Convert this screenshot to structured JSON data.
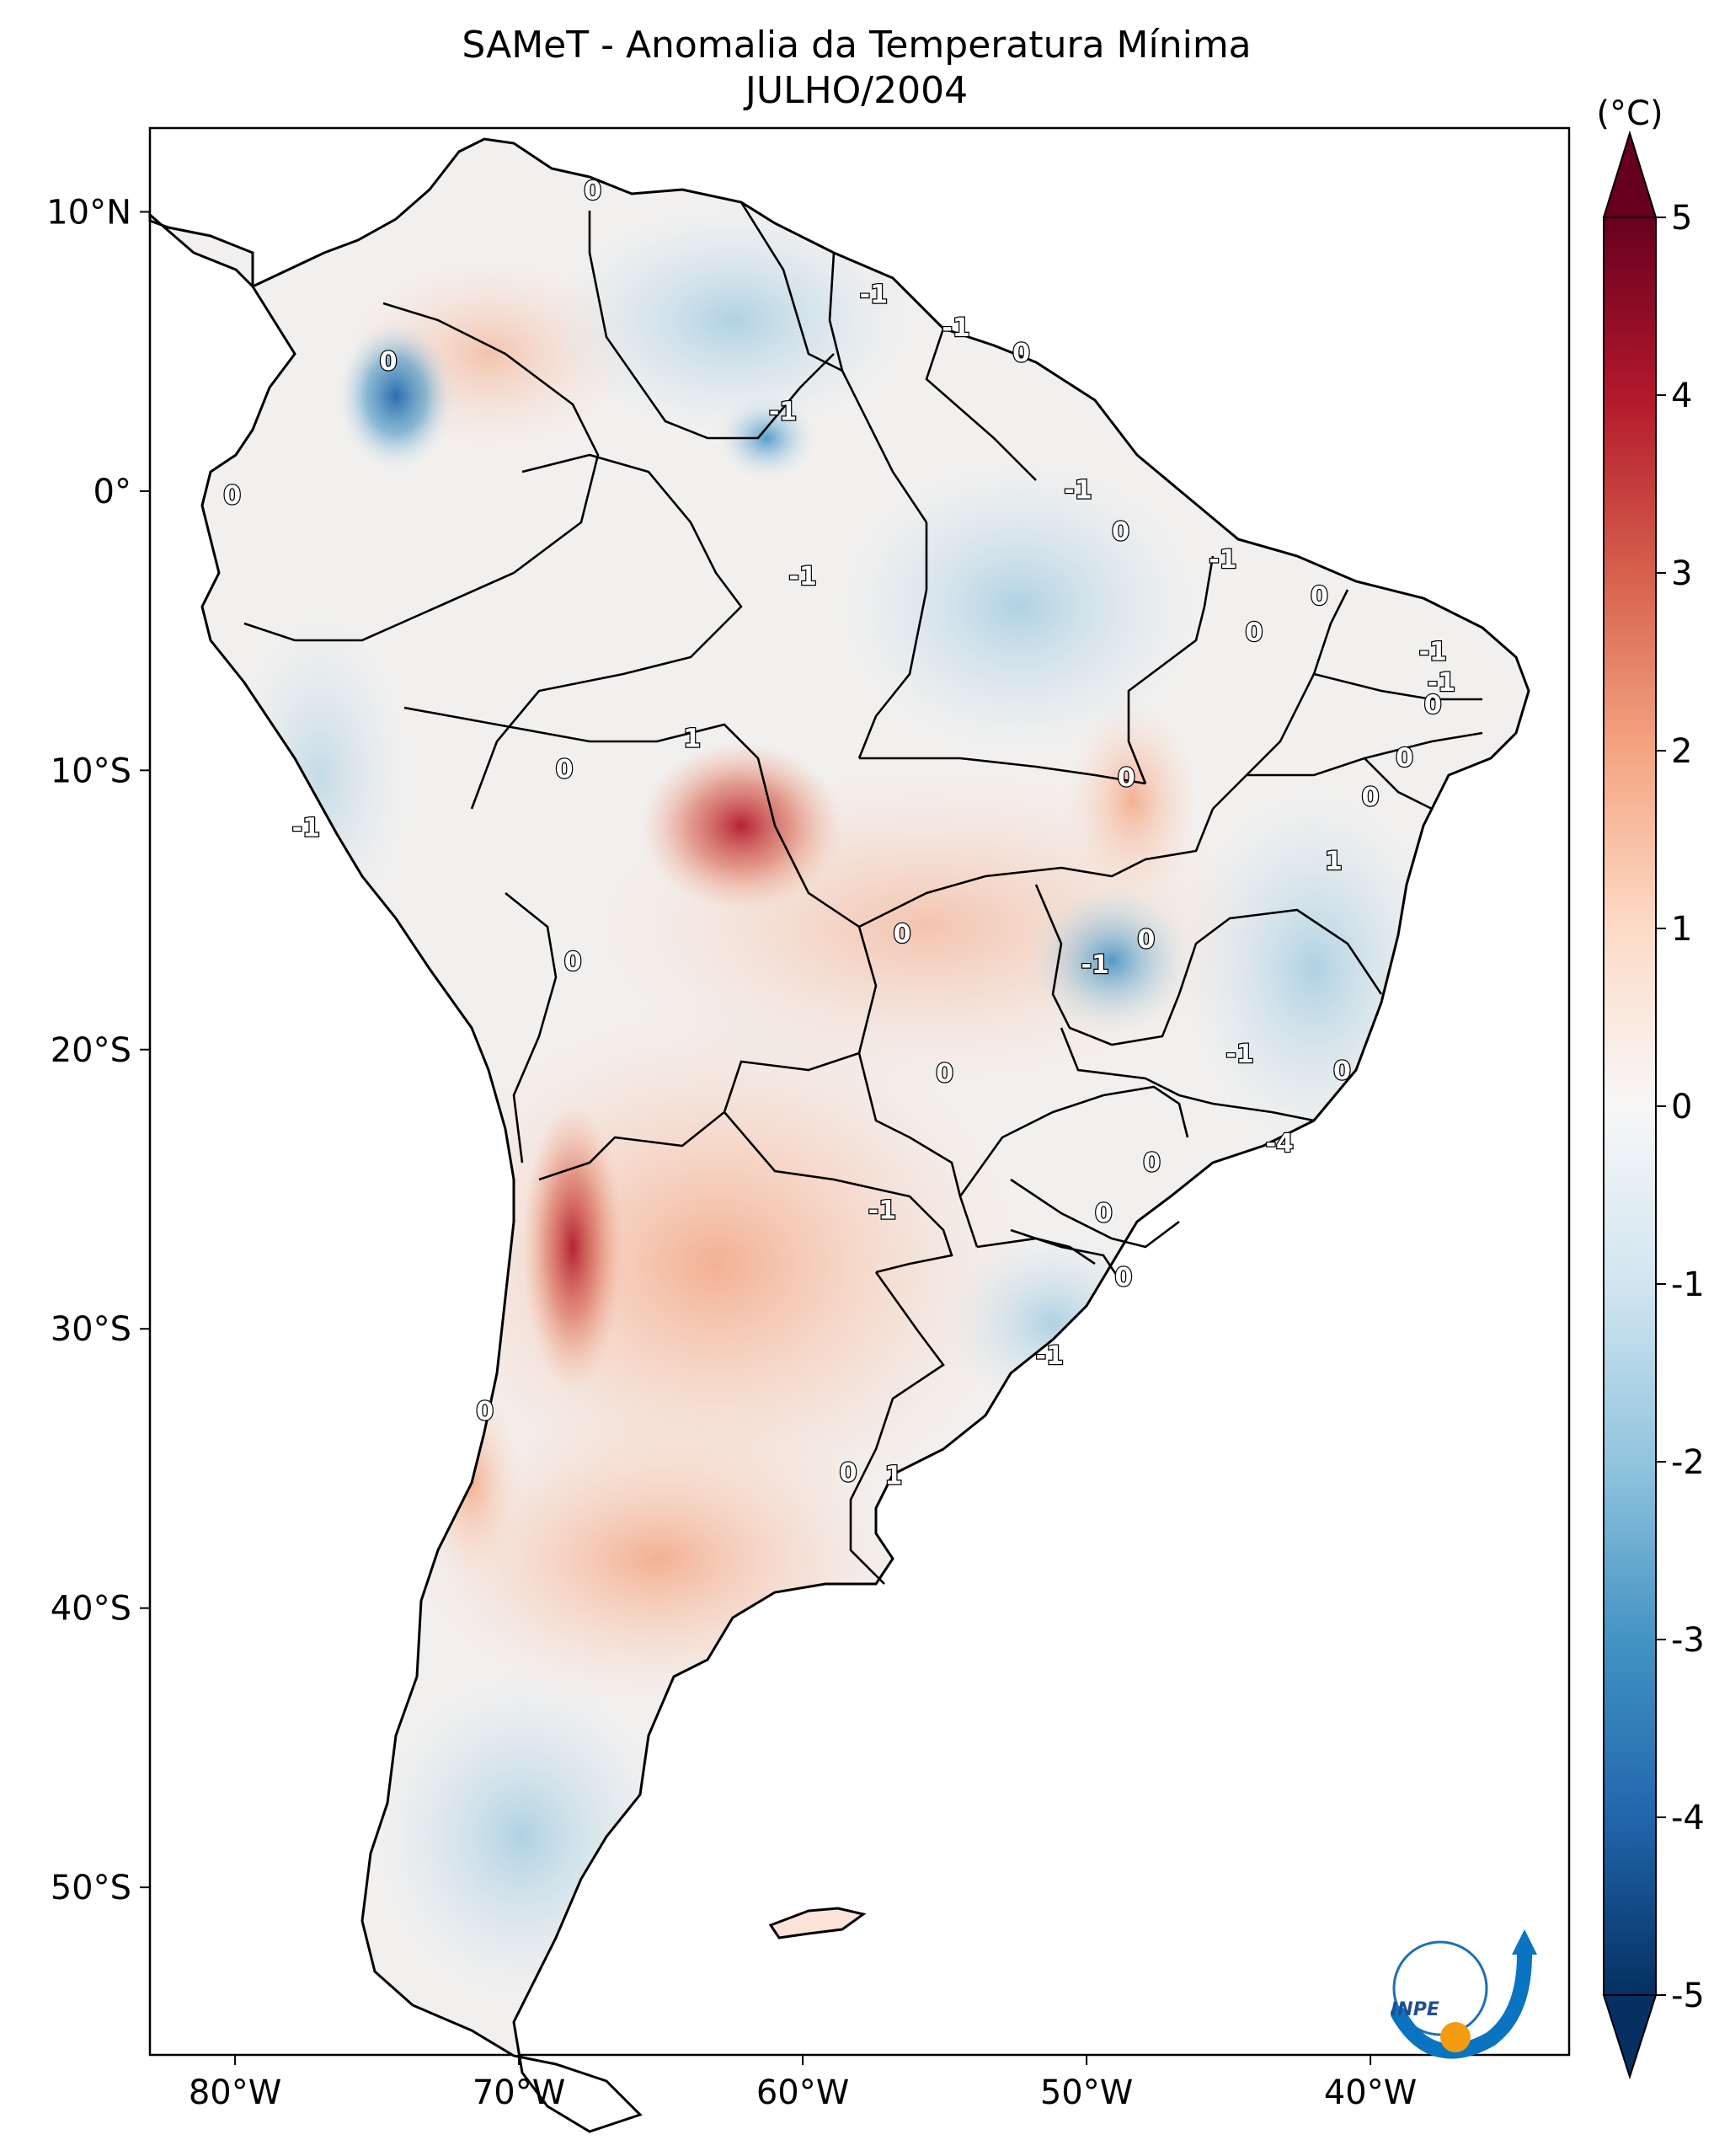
{
  "title": {
    "line1": "SAMeT - Anomalia da Temperatura Mínima",
    "line2": "JULHO/2004"
  },
  "colorbar": {
    "unit_label": "(°C)",
    "ticks": [
      "5",
      "4",
      "3",
      "2",
      "1",
      "0",
      "-1",
      "-2",
      "-3",
      "-4",
      "-5"
    ],
    "min": -5,
    "max": 5,
    "colors": {
      "neg5": "#053061",
      "neg4": "#2166ac",
      "neg3": "#4393c3",
      "neg2": "#92c5de",
      "neg1": "#d1e5f0",
      "zero": "#f7f7f7",
      "pos1": "#fddbc7",
      "pos2": "#f4a582",
      "pos3": "#d6604d",
      "pos4": "#b2182b",
      "pos5": "#67001f"
    }
  },
  "axes": {
    "lon_ticks": [
      "80°W",
      "70°W",
      "60°W",
      "50°W",
      "40°W"
    ],
    "lat_ticks": [
      "10°N",
      "0°",
      "10°S",
      "20°S",
      "30°S",
      "40°S",
      "50°S"
    ]
  },
  "contour_labels": [
    {
      "text": "0",
      "lon": -67.4,
      "lat": 10.7
    },
    {
      "text": "-1",
      "lon": -57.5,
      "lat": 7.0
    },
    {
      "text": "-1",
      "lon": -54.6,
      "lat": 5.8
    },
    {
      "text": "0",
      "lon": -52.3,
      "lat": 4.9
    },
    {
      "text": "0",
      "lon": -74.6,
      "lat": 4.6
    },
    {
      "text": "-1",
      "lon": -60.7,
      "lat": 2.8
    },
    {
      "text": "-1",
      "lon": -50.3,
      "lat": 0.0
    },
    {
      "text": "0",
      "lon": -48.8,
      "lat": -1.5
    },
    {
      "text": "0",
      "lon": -80.1,
      "lat": -0.2
    },
    {
      "text": "-1",
      "lon": -60.0,
      "lat": -3.1
    },
    {
      "text": "-1",
      "lon": -45.2,
      "lat": -2.5
    },
    {
      "text": "0",
      "lon": -41.8,
      "lat": -3.8
    },
    {
      "text": "0",
      "lon": -44.1,
      "lat": -5.1
    },
    {
      "text": "-1",
      "lon": -37.8,
      "lat": -5.8
    },
    {
      "text": "-1",
      "lon": -37.5,
      "lat": -6.9
    },
    {
      "text": "0",
      "lon": -37.8,
      "lat": -7.7
    },
    {
      "text": "1",
      "lon": -63.9,
      "lat": -8.9
    },
    {
      "text": "0",
      "lon": -38.8,
      "lat": -9.6
    },
    {
      "text": "0",
      "lon": -68.4,
      "lat": -10.0
    },
    {
      "text": "0",
      "lon": -48.6,
      "lat": -10.3
    },
    {
      "text": "0",
      "lon": -40.0,
      "lat": -11.0
    },
    {
      "text": "-1",
      "lon": -77.5,
      "lat": -12.1
    },
    {
      "text": "1",
      "lon": -41.3,
      "lat": -13.3
    },
    {
      "text": "0",
      "lon": -56.5,
      "lat": -15.9
    },
    {
      "text": "0",
      "lon": -47.9,
      "lat": -16.1
    },
    {
      "text": "-1",
      "lon": -49.7,
      "lat": -17.0
    },
    {
      "text": "0",
      "lon": -68.1,
      "lat": -16.9
    },
    {
      "text": "-1",
      "lon": -44.6,
      "lat": -20.2
    },
    {
      "text": "0",
      "lon": -55.0,
      "lat": -20.9
    },
    {
      "text": "0",
      "lon": -41.0,
      "lat": -20.8
    },
    {
      "text": "-4",
      "lon": -43.2,
      "lat": -23.4
    },
    {
      "text": "0",
      "lon": -47.7,
      "lat": -24.1
    },
    {
      "text": "-1",
      "lon": -57.2,
      "lat": -25.8
    },
    {
      "text": "0",
      "lon": -49.4,
      "lat": -25.9
    },
    {
      "text": "0",
      "lon": -48.7,
      "lat": -28.2
    },
    {
      "text": "-1",
      "lon": -51.3,
      "lat": -31.0
    },
    {
      "text": "0",
      "lon": -71.2,
      "lat": -33.0
    },
    {
      "text": "0",
      "lon": -58.4,
      "lat": -35.2
    },
    {
      "text": "1",
      "lon": -56.8,
      "lat": -35.3
    }
  ],
  "logo": {
    "text": "INPE"
  }
}
